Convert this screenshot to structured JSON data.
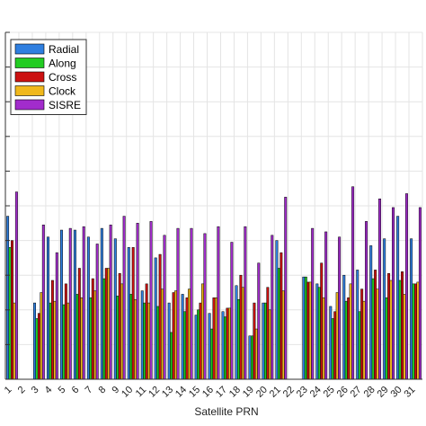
{
  "chart_data": {
    "type": "bar",
    "title": "",
    "xlabel": "Satellite PRN",
    "ylabel": "",
    "ylim": [
      0,
      10
    ],
    "y_tick_labels_visible": false,
    "grid": true,
    "legend_position": "top-left",
    "categories": [
      "1",
      "2",
      "3",
      "4",
      "5",
      "6",
      "7",
      "8",
      "9",
      "10",
      "11",
      "12",
      "13",
      "14",
      "15",
      "16",
      "17",
      "18",
      "19",
      "20",
      "21",
      "22",
      "23",
      "24",
      "25",
      "26",
      "27",
      "28",
      "29",
      "30",
      "31"
    ],
    "series": [
      {
        "name": "Radial",
        "color": "#2f7fe0",
        "values": [
          4.7,
          0,
          2.2,
          4.1,
          4.3,
          4.3,
          4.1,
          4.35,
          4.05,
          3.8,
          2.55,
          3.5,
          2.2,
          2.45,
          1.85,
          1.9,
          1.95,
          2.7,
          1.25,
          2.2,
          4.0,
          0,
          2.95,
          2.75,
          2.1,
          3.0,
          3.15,
          3.85,
          4.05,
          4.7,
          4.05
        ]
      },
      {
        "name": "Along",
        "color": "#22cc22",
        "values": [
          3.8,
          0,
          1.75,
          2.2,
          2.15,
          2.45,
          2.35,
          2.9,
          2.4,
          2.45,
          2.2,
          2.1,
          1.35,
          1.95,
          2.0,
          1.45,
          1.8,
          2.3,
          1.25,
          2.2,
          3.2,
          0,
          2.95,
          2.65,
          1.75,
          2.25,
          1.95,
          2.9,
          2.35,
          2.85,
          2.75
        ]
      },
      {
        "name": "Cross",
        "color": "#cc1111",
        "values": [
          4.0,
          0,
          1.9,
          2.85,
          2.75,
          3.2,
          2.9,
          3.2,
          3.05,
          3.8,
          2.75,
          3.6,
          2.5,
          2.35,
          2.2,
          2.35,
          2.05,
          3.0,
          2.2,
          2.65,
          3.65,
          0,
          2.8,
          3.35,
          1.95,
          2.35,
          2.6,
          3.15,
          3.05,
          3.1,
          2.75
        ]
      },
      {
        "name": "Clock",
        "color": "#f0b81c",
        "values": [
          2.2,
          0,
          2.5,
          2.25,
          2.2,
          2.35,
          2.55,
          3.2,
          2.75,
          2.3,
          2.2,
          2.6,
          2.55,
          2.6,
          2.75,
          2.35,
          2.05,
          2.65,
          1.45,
          2.0,
          2.55,
          0,
          2.8,
          2.35,
          2.5,
          2.75,
          2.25,
          2.6,
          2.85,
          2.45,
          2.8
        ]
      },
      {
        "name": "SISRE",
        "color": "#a22ccc",
        "values": [
          5.4,
          0,
          4.45,
          3.65,
          4.35,
          4.4,
          3.9,
          4.45,
          4.7,
          4.5,
          4.55,
          4.15,
          4.35,
          4.35,
          4.2,
          4.4,
          3.95,
          4.4,
          3.35,
          4.15,
          5.25,
          0,
          4.35,
          4.25,
          4.1,
          5.55,
          4.55,
          5.2,
          4.95,
          5.35,
          4.95
        ]
      }
    ]
  }
}
